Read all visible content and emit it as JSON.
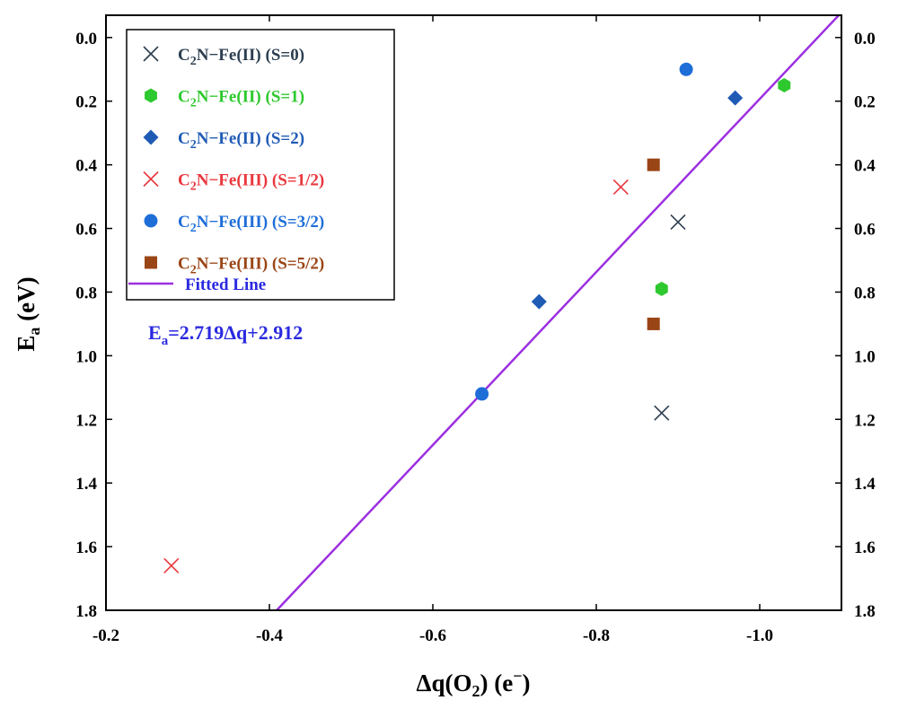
{
  "chart_data": {
    "type": "scatter",
    "xlabel": {
      "main": "Δq(O",
      "sub": "2",
      "tail": ") (e",
      "sup": "−",
      "close": ")"
    },
    "ylabel": {
      "main": "E",
      "sub": "a",
      "tail": " (eV)"
    },
    "xlim": [
      -0.2,
      -1.1
    ],
    "ylim": [
      1.8,
      -0.07
    ],
    "x_ticks": [
      -0.2,
      -0.4,
      -0.6,
      -0.8,
      -1.0
    ],
    "x_tick_labels": [
      "-0.2",
      "-0.4",
      "-0.6",
      "-0.8",
      "-1.0"
    ],
    "y_ticks": [
      0.0,
      0.2,
      0.4,
      0.6,
      0.8,
      1.0,
      1.2,
      1.4,
      1.6,
      1.8
    ],
    "y_tick_labels": [
      "0.0",
      "0.2",
      "0.4",
      "0.6",
      "0.8",
      "1.0",
      "1.2",
      "1.4",
      "1.6",
      "1.8"
    ],
    "grid": false,
    "legend_position": "top-left",
    "series": [
      {
        "name": "C2N-Fe(II) (S=0)",
        "label_parts": [
          "C",
          "2",
          "N−Fe(II) (S=0)"
        ],
        "marker": "x",
        "color": "#2c3e50",
        "points": [
          {
            "x": -0.9,
            "y": 0.58
          },
          {
            "x": -0.88,
            "y": 1.18
          }
        ]
      },
      {
        "name": "C2N-Fe(II) (S=1)",
        "label_parts": [
          "C",
          "2",
          "N−Fe(II) (S=1)"
        ],
        "marker": "hexagon",
        "color": "#2ec92e",
        "points": [
          {
            "x": -1.03,
            "y": 0.15
          },
          {
            "x": -0.88,
            "y": 0.79
          }
        ]
      },
      {
        "name": "C2N-Fe(II) (S=2)",
        "label_parts": [
          "C",
          "2",
          "N−Fe(II) (S=2)"
        ],
        "marker": "diamond",
        "color": "#1f5bb5",
        "points": [
          {
            "x": -0.97,
            "y": 0.19
          },
          {
            "x": -0.73,
            "y": 0.83
          }
        ]
      },
      {
        "name": "C2N-Fe(III) (S=1/2)",
        "label_parts": [
          "C",
          "2",
          "N−Fe(III) (S=1/2)"
        ],
        "marker": "x",
        "color": "#e8373d",
        "points": [
          {
            "x": -0.83,
            "y": 0.47
          },
          {
            "x": -0.28,
            "y": 1.66
          }
        ]
      },
      {
        "name": "C2N-Fe(III) (S=3/2)",
        "label_parts": [
          "C",
          "2",
          "N−Fe(III) (S=3/2)"
        ],
        "marker": "circle",
        "color": "#1e6ed8",
        "points": [
          {
            "x": -0.91,
            "y": 0.1
          },
          {
            "x": -0.66,
            "y": 1.12
          }
        ]
      },
      {
        "name": "C2N-Fe(III) (S=5/2)",
        "label_parts": [
          "C",
          "2",
          "N−Fe(III) (S=5/2)"
        ],
        "marker": "square",
        "color": "#9a4515",
        "points": [
          {
            "x": -0.87,
            "y": 0.4
          },
          {
            "x": -0.87,
            "y": 0.9
          }
        ]
      }
    ],
    "fitted_line": {
      "name": "Fitted Line",
      "color": "#9b30e0",
      "slope": 2.719,
      "intercept": 2.912,
      "x_range": [
        -0.4092,
        -1.0977
      ]
    },
    "equation": {
      "lhs": "E",
      "sub": "a",
      "rhs": "=2.719Δq+2.912",
      "color": "#2a2ae0"
    }
  }
}
